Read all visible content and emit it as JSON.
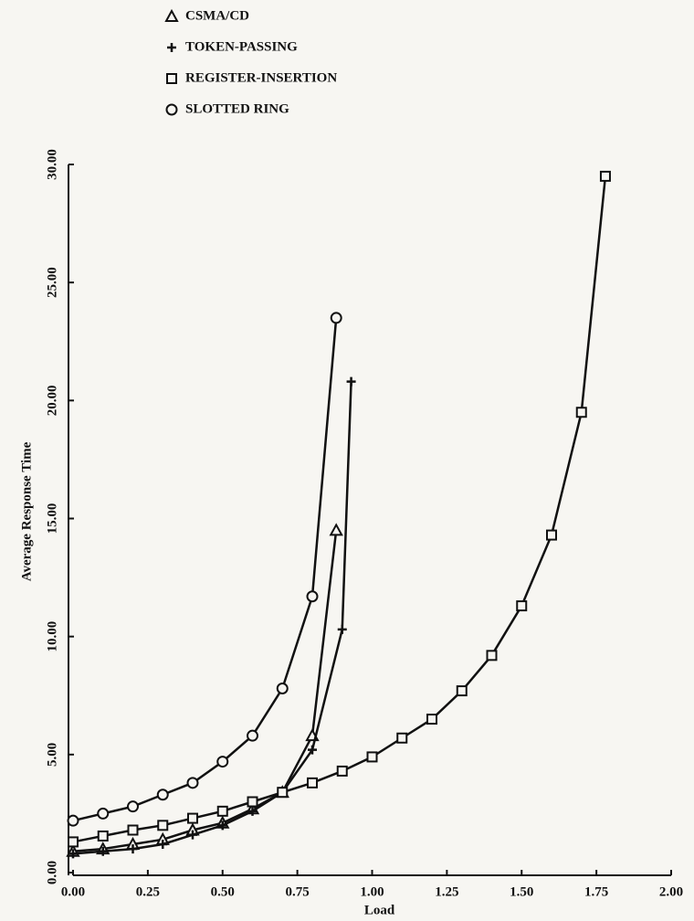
{
  "chart_data": {
    "type": "line",
    "x_label": "Load",
    "y_label": "Average Response Time",
    "xlim": [
      0,
      2
    ],
    "ylim": [
      0,
      30
    ],
    "xticks": [
      {
        "value": 0,
        "label": "0.00"
      },
      {
        "value": 0.25,
        "label": "0.25"
      },
      {
        "value": 0.5,
        "label": "0.50"
      },
      {
        "value": 0.75,
        "label": "0.75"
      },
      {
        "value": 1,
        "label": "1.00"
      },
      {
        "value": 1.25,
        "label": "1.25"
      },
      {
        "value": 1.5,
        "label": "1.50"
      },
      {
        "value": 1.75,
        "label": "1.75"
      },
      {
        "value": 2,
        "label": "2.00"
      }
    ],
    "yticks": [
      {
        "value": 0,
        "label": "0.00"
      },
      {
        "value": 5,
        "label": "5.00"
      },
      {
        "value": 10,
        "label": "10.00"
      },
      {
        "value": 15,
        "label": "15.00"
      },
      {
        "value": 20,
        "label": "20.00"
      },
      {
        "value": 25,
        "label": "25.00"
      },
      {
        "value": 30,
        "label": "30.00"
      }
    ],
    "series": [
      {
        "name": "CSMA/CD",
        "marker": "triangle",
        "color": "#111111",
        "x": [
          0,
          0.1,
          0.2,
          0.3,
          0.4,
          0.5,
          0.6,
          0.7,
          0.8,
          0.88
        ],
        "values": [
          0.9,
          1.0,
          1.2,
          1.4,
          1.8,
          2.1,
          2.7,
          3.4,
          5.8,
          14.5
        ]
      },
      {
        "name": "TOKEN-PASSING",
        "marker": "plus",
        "color": "#111111",
        "x": [
          0,
          0.1,
          0.2,
          0.3,
          0.4,
          0.5,
          0.6,
          0.7,
          0.8,
          0.9,
          0.93
        ],
        "values": [
          0.8,
          0.9,
          1.0,
          1.2,
          1.6,
          2.0,
          2.6,
          3.4,
          5.2,
          10.3,
          20.8
        ]
      },
      {
        "name": "REGISTER-INSERTION",
        "marker": "square",
        "color": "#111111",
        "x": [
          0,
          0.1,
          0.2,
          0.3,
          0.4,
          0.5,
          0.6,
          0.7,
          0.8,
          0.9,
          1.0,
          1.1,
          1.2,
          1.3,
          1.4,
          1.5,
          1.6,
          1.7,
          1.78
        ],
        "values": [
          1.3,
          1.55,
          1.8,
          2.0,
          2.3,
          2.6,
          3.0,
          3.4,
          3.8,
          4.3,
          4.9,
          5.7,
          6.5,
          7.7,
          9.2,
          11.3,
          14.3,
          19.5,
          29.5
        ]
      },
      {
        "name": "SLOTTED RING",
        "marker": "circle",
        "color": "#111111",
        "x": [
          0,
          0.1,
          0.2,
          0.3,
          0.4,
          0.5,
          0.6,
          0.7,
          0.8,
          0.88
        ],
        "values": [
          2.2,
          2.5,
          2.8,
          3.3,
          3.8,
          4.7,
          5.8,
          7.8,
          11.7,
          23.5
        ]
      }
    ]
  }
}
